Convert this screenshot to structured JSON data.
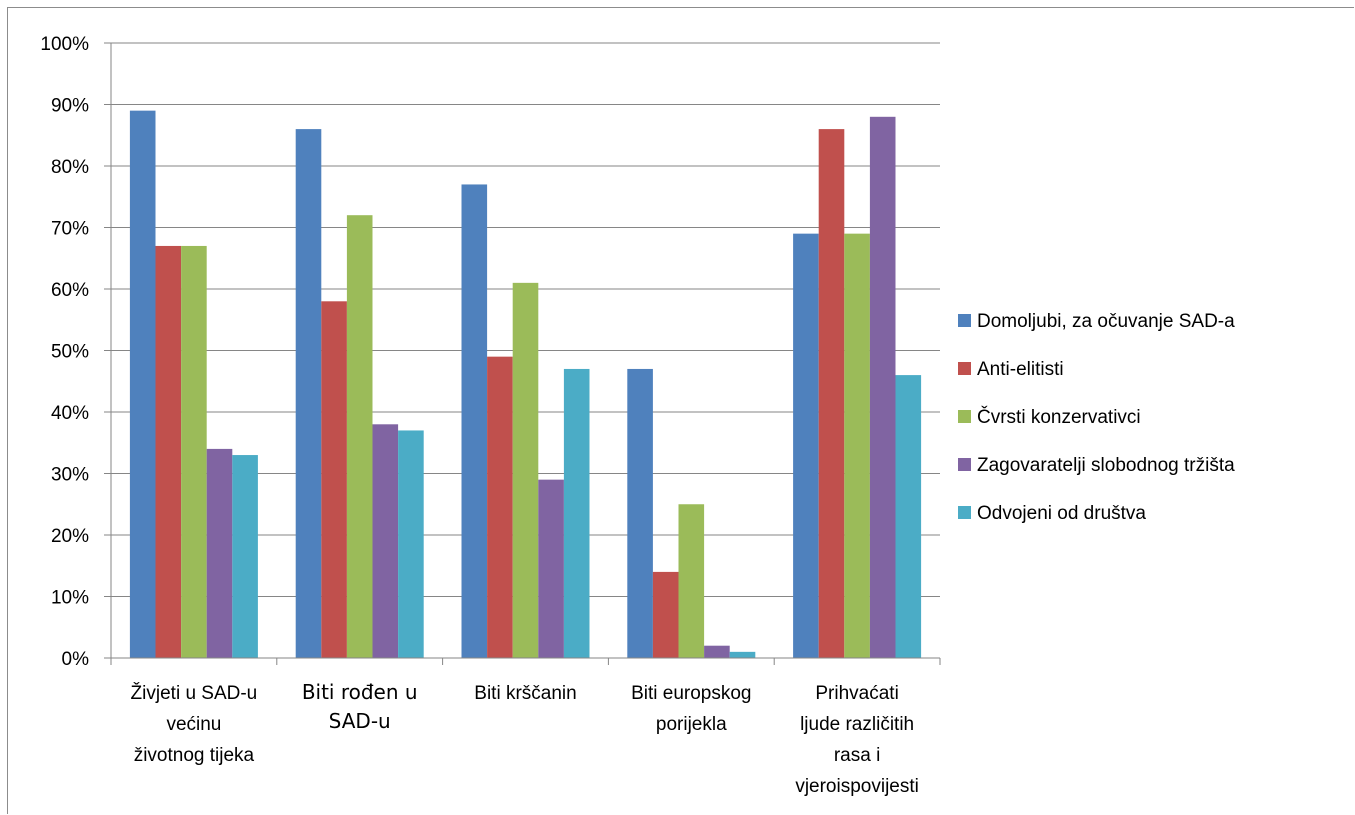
{
  "chart_data": {
    "type": "bar",
    "title": "",
    "xlabel": "",
    "ylabel": "",
    "ylim": [
      0,
      1
    ],
    "y_tick_format": "percent",
    "y_ticks": [
      "0%",
      "10%",
      "20%",
      "30%",
      "40%",
      "50%",
      "60%",
      "70%",
      "80%",
      "90%",
      "100%"
    ],
    "grid": true,
    "legend_position": "right",
    "categories": [
      [
        "Živjeti u SAD-u",
        "većinu",
        "životnog tijeka"
      ],
      [
        "Biti rođen u",
        "SAD-u"
      ],
      [
        "Biti krščanin"
      ],
      [
        "Biti europskog",
        "porijekla"
      ],
      [
        "Prihvaćati",
        "ljude različitih",
        "rasa i",
        "vjeroispovijesti"
      ]
    ],
    "series": [
      {
        "name": "Domoljubi, za očuvanje SAD-a",
        "color": "#4f81bd",
        "values": [
          0.89,
          0.86,
          0.77,
          0.47,
          0.69
        ]
      },
      {
        "name": "Anti-elitisti",
        "color": "#c0504d",
        "values": [
          0.67,
          0.58,
          0.49,
          0.14,
          0.86
        ]
      },
      {
        "name": "Čvrsti konzervativci",
        "color": "#9bbb59",
        "values": [
          0.67,
          0.72,
          0.61,
          0.25,
          0.69
        ]
      },
      {
        "name": "Zagovaratelji slobodnog tržišta",
        "color": "#8064a2",
        "values": [
          0.34,
          0.38,
          0.29,
          0.02,
          0.88
        ]
      },
      {
        "name": "Odvojeni od društva",
        "color": "#4bacc6",
        "values": [
          0.33,
          0.37,
          0.47,
          0.01,
          0.46
        ]
      }
    ]
  }
}
